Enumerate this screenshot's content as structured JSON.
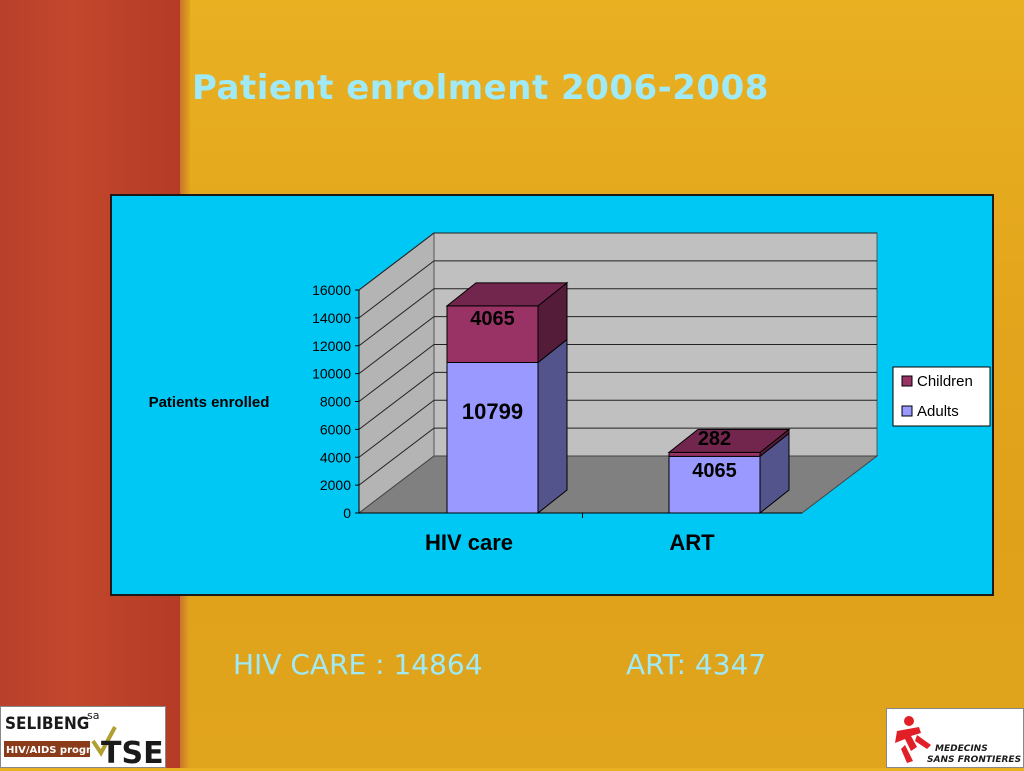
{
  "slide": {
    "title": "Patient enrolment 2006-2008",
    "summary_hiv": "HIV CARE : 14864",
    "summary_art": "ART: 4347"
  },
  "logos": {
    "left": "SELIBENG sa HIV/AIDS programme TSEPO",
    "right": "MEDECINS SANS FRONTIERES"
  },
  "colors": {
    "adults": "#9999ff",
    "children": "#993366",
    "plot_area": "#c0c0c0",
    "chart_bg": "#00c8f5",
    "title": "#9feaf6"
  },
  "chart_data": {
    "type": "bar",
    "stacked": true,
    "three_d": true,
    "categories": [
      "HIV care",
      "ART"
    ],
    "series": [
      {
        "name": "Adults",
        "values": [
          10799,
          4065
        ],
        "labels": [
          "10799",
          "4065"
        ]
      },
      {
        "name": "Children",
        "values": [
          4065,
          282
        ],
        "labels": [
          "4065",
          "282"
        ]
      }
    ],
    "ylabel": "Patients enrolled",
    "ylim": [
      0,
      16000
    ],
    "yticks": [
      "0",
      "2000",
      "4000",
      "6000",
      "8000",
      "10000",
      "12000",
      "14000",
      "16000"
    ],
    "grid": true,
    "legend": "right"
  }
}
